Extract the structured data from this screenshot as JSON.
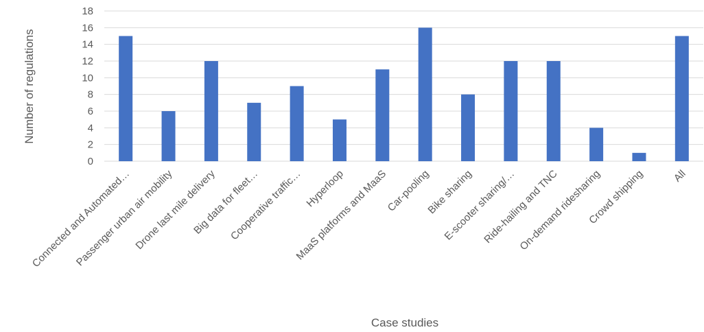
{
  "chart_data": {
    "type": "bar",
    "title": "",
    "xlabel": "Case studies",
    "ylabel": "Number of regulations",
    "ylim": [
      0,
      18
    ],
    "ytick_step": 2,
    "grid": true,
    "legend": "none",
    "categories": [
      "Connected and Automated…",
      "Passenger urban air mobility",
      "Drone last mile delivery",
      "Big data for fleet…",
      "Cooperative traffic…",
      "Hyperloop",
      "MaaS platforms and MaaS",
      "Car-pooling",
      "Bike sharing",
      "E-scooter sharing/…",
      "Ride-hailing and TNC",
      "On-demand ridesharing",
      "Crowd shipping",
      "All"
    ],
    "values": [
      15,
      6,
      12,
      7,
      9,
      5,
      11,
      16,
      8,
      12,
      12,
      4,
      1,
      15
    ],
    "colors": {
      "bar": "#4472C4",
      "grid": "#D9D9D9",
      "text": "#595959"
    }
  }
}
